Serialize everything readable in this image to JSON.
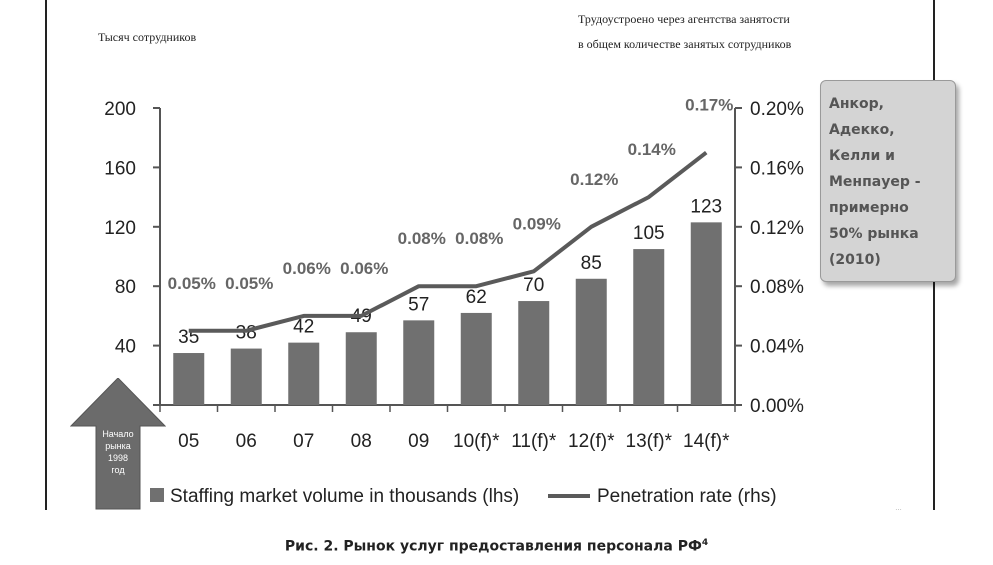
{
  "chart_data": {
    "type": "bar+line",
    "categories": [
      "05",
      "06",
      "07",
      "08",
      "09",
      "10(f)*",
      "11(f)*",
      "12(f)*",
      "13(f)*",
      "14(f)*"
    ],
    "series": [
      {
        "name": "Staffing market volume in thousands (lhs)",
        "type": "bar",
        "axis": "left",
        "values": [
          35,
          38,
          42,
          49,
          57,
          62,
          70,
          85,
          105,
          123
        ],
        "labels": [
          "35",
          "38",
          "42",
          "49",
          "57",
          "62",
          "70",
          "85",
          "105",
          "123"
        ],
        "color": "#707070"
      },
      {
        "name": "Penetration rate (rhs)",
        "type": "line",
        "axis": "right",
        "values": [
          0.05,
          0.05,
          0.06,
          0.06,
          0.08,
          0.08,
          0.09,
          0.12,
          0.14,
          0.17
        ],
        "labels": [
          "0.05%",
          "0.05%",
          "0.06%",
          "0.06%",
          "0.08%",
          "0.08%",
          "0.09%",
          "0.12%",
          "0.14%",
          "0.17%"
        ],
        "color": "#5a5a5a"
      }
    ],
    "ylim_left": [
      0,
      200
    ],
    "yticks_left": [
      "200",
      "160",
      "120",
      "80",
      "40"
    ],
    "ylim_right": [
      0,
      0.2
    ],
    "yticks_right": [
      "0.20%",
      "0.16%",
      "0.12%",
      "0.08%",
      "0.04%",
      "0.00%"
    ],
    "ylabel_left": "Тысяч сотрудников",
    "ylabel_right": [
      "Трудоустроено через агентства занятости",
      "в общем количестве занятых сотрудников"
    ],
    "legend": [
      "Staffing market volume in thousands (lhs)",
      "Penetration rate (rhs)"
    ],
    "legend_position": "bottom",
    "grid": false
  },
  "annotations": {
    "note_lines": [
      "Анкор,",
      "Адекко,",
      "Келли и",
      "Менпауер -",
      "примерно",
      "50% рынка",
      "(2010)"
    ],
    "market_start": [
      "Начало",
      "рынка",
      "1998",
      "год"
    ]
  },
  "caption": {
    "text": "Рис. 2. Рынок услуг предоставления персонала РФ",
    "footnote": "4"
  },
  "colors": {
    "bar": "#707070",
    "line": "#5a5a5a",
    "note_bg": "#d4d4d4",
    "arrow": "#6b6b6b"
  }
}
